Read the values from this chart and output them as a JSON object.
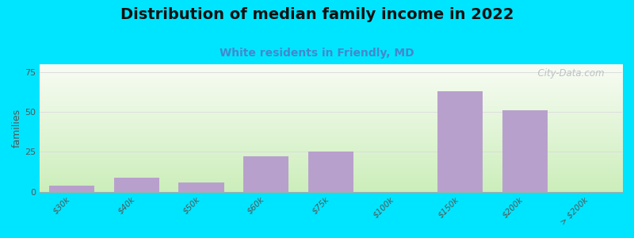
{
  "title": "Distribution of median family income in 2022",
  "subtitle": "White residents in Friendly, MD",
  "categories": [
    "$30k",
    "$40k",
    "$50k",
    "$60k",
    "$75k",
    "$100k",
    "$150k",
    "$200k",
    "> $200k"
  ],
  "values": [
    4,
    9,
    6,
    22,
    25,
    0,
    63,
    51,
    0
  ],
  "bar_color": "#b8a0cc",
  "ylabel": "families",
  "yticks": [
    0,
    25,
    50,
    75
  ],
  "ylim": [
    0,
    80
  ],
  "background_color": "#00e5ff",
  "grad_color_top": "#f8fcf4",
  "grad_color_bottom": "#cceebb",
  "title_fontsize": 14,
  "subtitle_fontsize": 10,
  "watermark": "  City-Data.com",
  "grid_color": "#dddddd",
  "tick_label_color": "#555555"
}
